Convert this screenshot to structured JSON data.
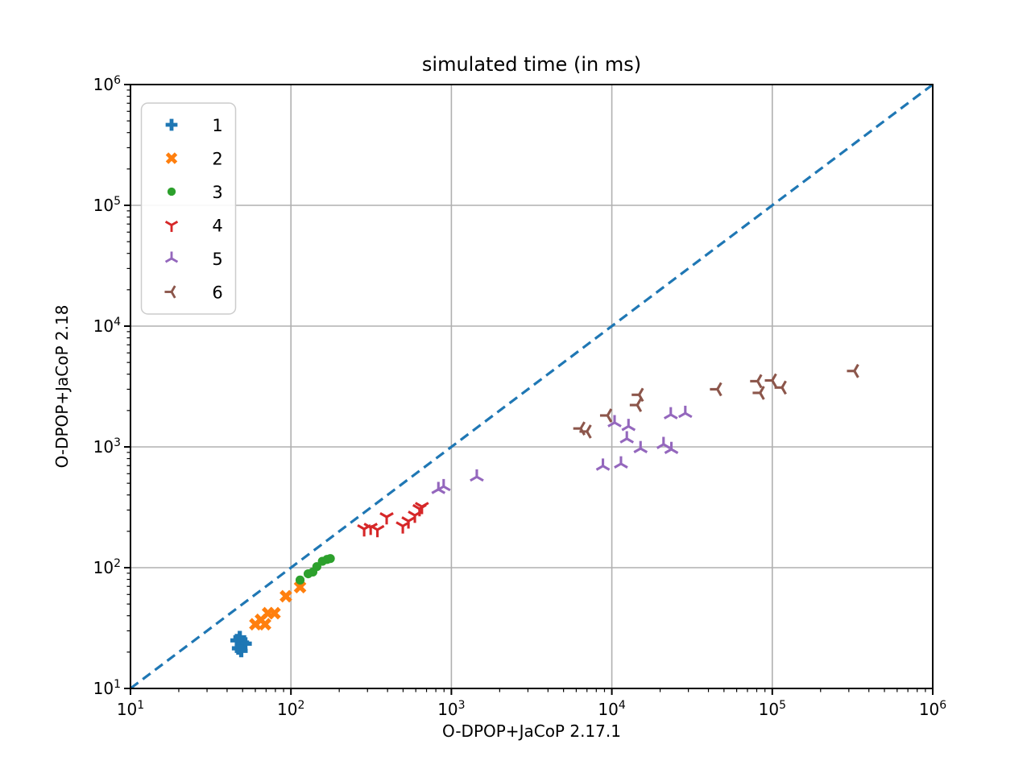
{
  "chart_data": {
    "type": "scatter",
    "title": "simulated time (in ms)",
    "xlabel": "O-DPOP+JaCoP 2.17.1",
    "ylabel": "O-DPOP+JaCoP 2.18",
    "x_scale": "log",
    "y_scale": "log",
    "xlim": [
      10,
      1000000
    ],
    "ylim": [
      10,
      1000000
    ],
    "x_tick_exponents": [
      1,
      2,
      3,
      4,
      5,
      6
    ],
    "y_tick_exponents": [
      1,
      2,
      3,
      4,
      5,
      6
    ],
    "grid": true,
    "grid_color": "#b0b0b0",
    "legend_position": "upper left",
    "reference_line": {
      "name": "diagonal y=x",
      "from": [
        10,
        10
      ],
      "to": [
        1000000,
        1000000
      ],
      "color": "#1f77b4",
      "style": "dashed"
    },
    "series": [
      {
        "name": "1",
        "marker": "plus",
        "color": "#1f77b4",
        "points": [
          [
            46,
            25
          ],
          [
            48,
            26.5
          ],
          [
            50,
            24
          ],
          [
            52,
            23.5
          ],
          [
            47,
            21.5
          ],
          [
            49,
            20.5
          ]
        ]
      },
      {
        "name": "2",
        "marker": "x",
        "color": "#ff7f0e",
        "points": [
          [
            60,
            34
          ],
          [
            65,
            37
          ],
          [
            69,
            34
          ],
          [
            72,
            42
          ],
          [
            79,
            42
          ],
          [
            93,
            58
          ],
          [
            114,
            69
          ]
        ]
      },
      {
        "name": "3",
        "marker": "circle",
        "color": "#2ca02c",
        "points": [
          [
            114,
            79
          ],
          [
            128,
            89
          ],
          [
            137,
            92
          ],
          [
            145,
            102
          ],
          [
            157,
            113
          ],
          [
            168,
            117
          ],
          [
            176,
            119
          ]
        ]
      },
      {
        "name": "4",
        "marker": "tri-down",
        "color": "#d62728",
        "points": [
          [
            286,
            209
          ],
          [
            314,
            215
          ],
          [
            346,
            206
          ],
          [
            395,
            263
          ],
          [
            498,
            221
          ],
          [
            540,
            243
          ],
          [
            592,
            271
          ],
          [
            633,
            307
          ],
          [
            655,
            320
          ]
        ]
      },
      {
        "name": "5",
        "marker": "tri-up",
        "color": "#9467bd",
        "points": [
          [
            830,
            445
          ],
          [
            895,
            470
          ],
          [
            1440,
            565
          ],
          [
            8800,
            695
          ],
          [
            11400,
            725
          ],
          [
            10400,
            1590
          ],
          [
            12700,
            1480
          ],
          [
            12400,
            1170
          ],
          [
            15100,
            970
          ],
          [
            21000,
            1050
          ],
          [
            23500,
            955
          ],
          [
            23300,
            1850
          ],
          [
            28700,
            1900
          ]
        ]
      },
      {
        "name": "6",
        "marker": "tri-left",
        "color": "#8c564b",
        "points": [
          [
            6400,
            1420
          ],
          [
            7000,
            1340
          ],
          [
            9400,
            1820
          ],
          [
            14400,
            2220
          ],
          [
            14800,
            2700
          ],
          [
            45500,
            3000
          ],
          [
            81000,
            3500
          ],
          [
            84000,
            2800
          ],
          [
            100000,
            3550
          ],
          [
            115000,
            3100
          ],
          [
            325000,
            4250
          ]
        ]
      }
    ]
  }
}
